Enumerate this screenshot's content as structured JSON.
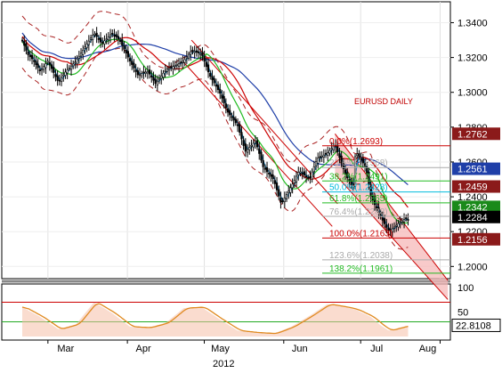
{
  "chart_data": [
    {
      "type": "candlestick",
      "instrument_label": "EURUSD DAILY",
      "ylim": [
        1.193,
        1.352
      ],
      "y_ticks": [
        "1.3400",
        "1.3200",
        "1.3000",
        "1.2800",
        "1.2600",
        "1.2400",
        "1.2200",
        "1.2000"
      ],
      "x_ticks": [
        "Mar",
        "Apr",
        "May",
        "Jun",
        "Jul",
        "Aug"
      ],
      "year_label": "2012",
      "close_path": [
        [
          "2012-02-20",
          1.33
        ],
        [
          "2012-02-22",
          1.322
        ],
        [
          "2012-02-24",
          1.319
        ],
        [
          "2012-02-27",
          1.312
        ],
        [
          "2012-03-01",
          1.318
        ],
        [
          "2012-03-05",
          1.306
        ],
        [
          "2012-03-08",
          1.312
        ],
        [
          "2012-03-12",
          1.318
        ],
        [
          "2012-03-15",
          1.325
        ],
        [
          "2012-03-19",
          1.334
        ],
        [
          "2012-03-22",
          1.328
        ],
        [
          "2012-03-26",
          1.334
        ],
        [
          "2012-03-29",
          1.33
        ],
        [
          "2012-04-02",
          1.318
        ],
        [
          "2012-04-05",
          1.31
        ],
        [
          "2012-04-09",
          1.312
        ],
        [
          "2012-04-12",
          1.305
        ],
        [
          "2012-04-16",
          1.313
        ],
        [
          "2012-04-19",
          1.315
        ],
        [
          "2012-04-23",
          1.318
        ],
        [
          "2012-04-26",
          1.324
        ],
        [
          "2012-04-30",
          1.322
        ],
        [
          "2012-05-03",
          1.31
        ],
        [
          "2012-05-07",
          1.3
        ],
        [
          "2012-05-10",
          1.289
        ],
        [
          "2012-05-14",
          1.281
        ],
        [
          "2012-05-17",
          1.266
        ],
        [
          "2012-05-21",
          1.272
        ],
        [
          "2012-05-24",
          1.257
        ],
        [
          "2012-05-28",
          1.25
        ],
        [
          "2012-05-31",
          1.236
        ],
        [
          "2012-06-04",
          1.246
        ],
        [
          "2012-06-07",
          1.255
        ],
        [
          "2012-06-11",
          1.25
        ],
        [
          "2012-06-14",
          1.262
        ],
        [
          "2012-06-18",
          1.265
        ],
        [
          "2012-06-21",
          1.27
        ],
        [
          "2012-06-25",
          1.253
        ],
        [
          "2012-06-28",
          1.245
        ],
        [
          "2012-06-29",
          1.266
        ],
        [
          "2012-07-03",
          1.257
        ],
        [
          "2012-07-05",
          1.24
        ],
        [
          "2012-07-09",
          1.228
        ],
        [
          "2012-07-12",
          1.22
        ],
        [
          "2012-07-16",
          1.225
        ],
        [
          "2012-07-19",
          1.228
        ],
        [
          "2012-07-20",
          1.226
        ]
      ],
      "fibonacci": [
        {
          "label": "0.0%(1.2693)",
          "value": 1.2693,
          "color": "#cc0000"
        },
        {
          "label": "23.6%(1.2568)",
          "value": 1.2568,
          "color": "#aaaaaa"
        },
        {
          "label": "38.2%(1.2491)",
          "value": 1.2491,
          "color": "#22bb22"
        },
        {
          "label": "50.0%(1.2428)",
          "value": 1.2428,
          "color": "#00bbdd"
        },
        {
          "label": "61.8%(1.2365)",
          "value": 1.2365,
          "color": "#22bb22"
        },
        {
          "label": "76.4%(1.2288)",
          "value": 1.2288,
          "color": "#aaaaaa"
        },
        {
          "label": "100.0%(1.2163)",
          "value": 1.2163,
          "color": "#cc0000"
        },
        {
          "label": "123.6%(1.2038)",
          "value": 1.2038,
          "color": "#aaaaaa"
        },
        {
          "label": "138.2%(1.1961)",
          "value": 1.1961,
          "color": "#22bb22"
        }
      ],
      "price_tags": [
        {
          "label": "1.2762",
          "value": 1.2762,
          "color": "#8b1a1a"
        },
        {
          "label": "1.2561",
          "value": 1.2561,
          "color": "#1f3fa8"
        },
        {
          "label": "1.2459",
          "value": 1.2459,
          "color": "#8b1a1a"
        },
        {
          "label": "1.2342",
          "value": 1.2342,
          "color": "#1a8a1a"
        },
        {
          "label": "1.2284",
          "value": 1.2284,
          "color": "#000000"
        },
        {
          "label": "1.2156",
          "value": 1.2156,
          "color": "#8b1a1a"
        }
      ],
      "colors": {
        "ma_fast": "#1e8fd0",
        "ma_mid": "#22bb22",
        "ma_slow_red": "#cc0000",
        "ma_long_blue": "#1f3fa8",
        "envelope": "#aa2222",
        "channel_fill": "#f5b8b8"
      }
    },
    {
      "type": "oscillator",
      "ylim": [
        0,
        100
      ],
      "y_ticks": [
        "100",
        "50"
      ],
      "current_label": "22.8108",
      "levels": [
        70,
        30
      ],
      "values": [
        [
          "2012-02-20",
          60
        ],
        [
          "2012-02-27",
          40
        ],
        [
          "2012-03-05",
          15
        ],
        [
          "2012-03-12",
          25
        ],
        [
          "2012-03-19",
          70
        ],
        [
          "2012-03-26",
          48
        ],
        [
          "2012-04-02",
          20
        ],
        [
          "2012-04-09",
          18
        ],
        [
          "2012-04-16",
          28
        ],
        [
          "2012-04-23",
          58
        ],
        [
          "2012-04-30",
          60
        ],
        [
          "2012-05-07",
          35
        ],
        [
          "2012-05-14",
          12
        ],
        [
          "2012-05-21",
          8
        ],
        [
          "2012-05-28",
          6
        ],
        [
          "2012-06-04",
          20
        ],
        [
          "2012-06-11",
          42
        ],
        [
          "2012-06-18",
          66
        ],
        [
          "2012-06-25",
          60
        ],
        [
          "2012-06-29",
          55
        ],
        [
          "2012-07-05",
          40
        ],
        [
          "2012-07-09",
          22
        ],
        [
          "2012-07-12",
          12
        ],
        [
          "2012-07-16",
          18
        ],
        [
          "2012-07-20",
          22.8
        ]
      ]
    }
  ]
}
